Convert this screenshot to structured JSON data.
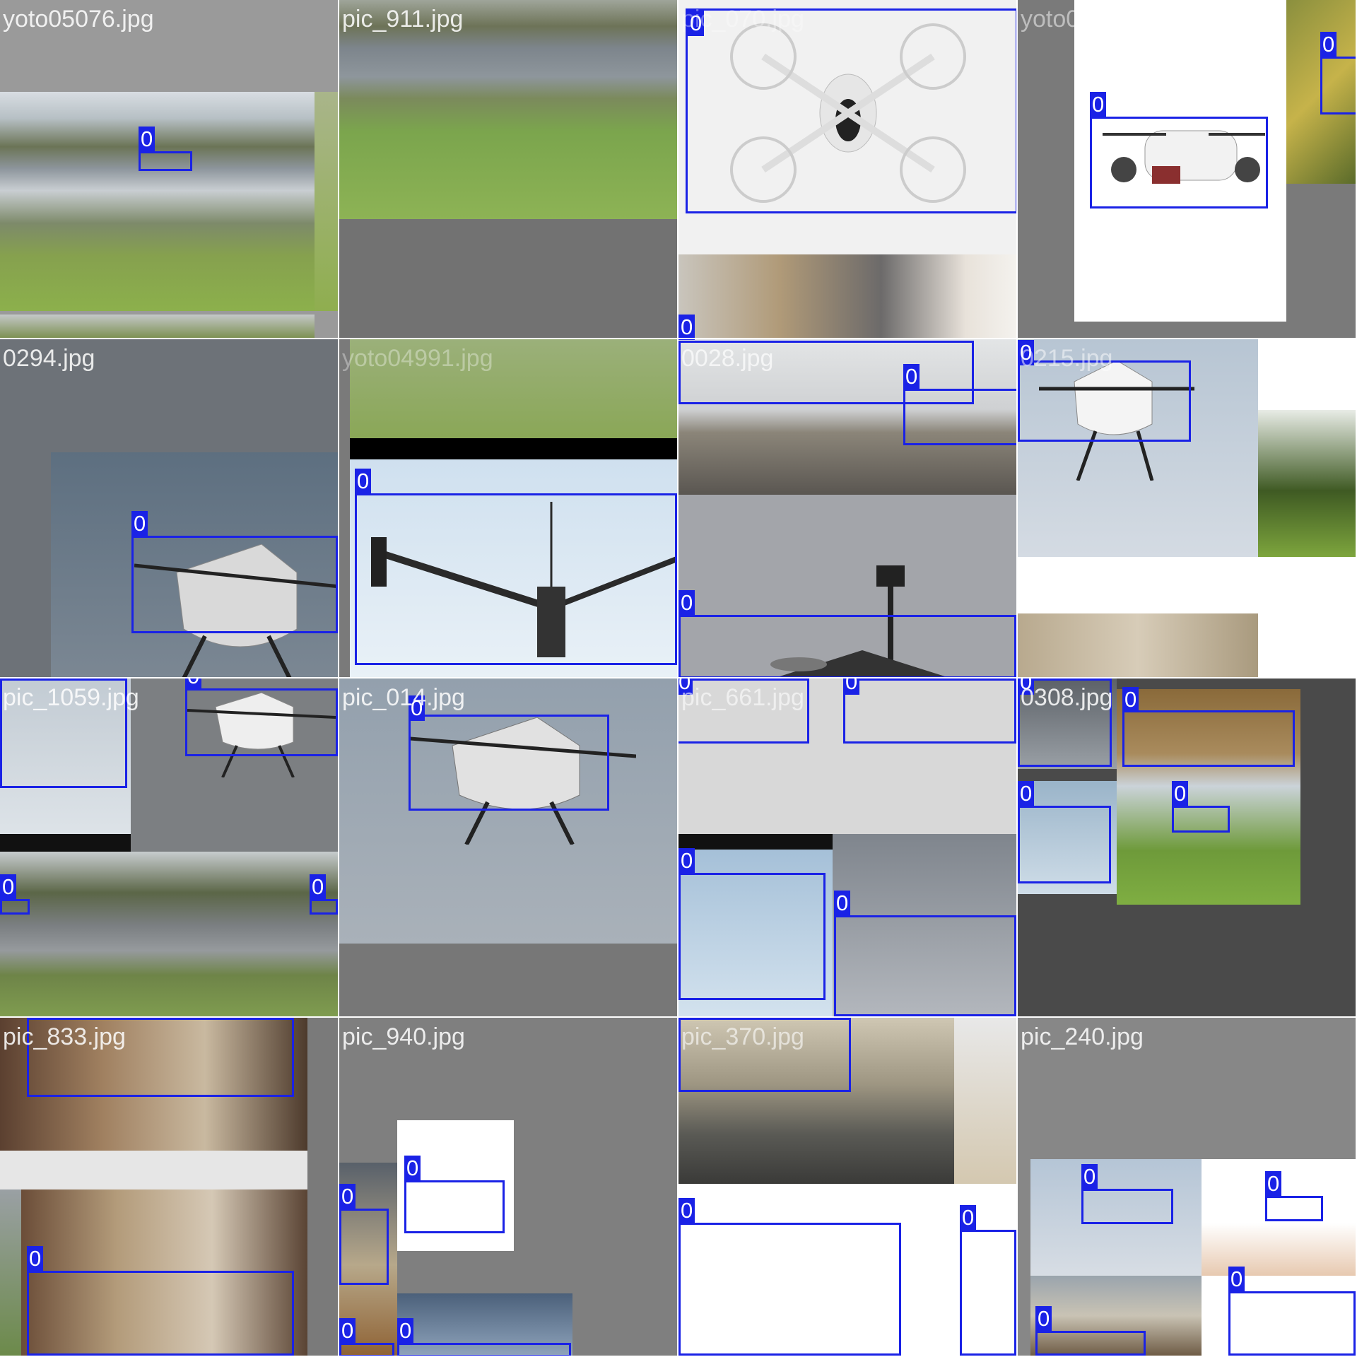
{
  "grid": {
    "rows": 4,
    "cols": 4
  },
  "box_color": "#1a22e6",
  "tiles": [
    {
      "filename": "yoto05076.jpg",
      "class_labels": [
        "0"
      ]
    },
    {
      "filename": "pic_911.jpg",
      "class_labels": []
    },
    {
      "filename": "pic_070.jpg",
      "class_labels": [
        "0",
        "0"
      ]
    },
    {
      "filename": "yoto05163.jpg",
      "class_labels": [
        "0",
        "0"
      ]
    },
    {
      "filename": "0294.jpg",
      "class_labels": [
        "0"
      ]
    },
    {
      "filename": "yoto04991.jpg",
      "class_labels": [
        "0"
      ]
    },
    {
      "filename": "0028.jpg",
      "class_labels": [
        "0",
        "0",
        "0"
      ]
    },
    {
      "filename": "0215.jpg",
      "class_labels": [
        "0"
      ]
    },
    {
      "filename": "pic_1059.jpg",
      "class_labels": [
        "0",
        "0",
        "0",
        "0"
      ]
    },
    {
      "filename": "pic_014.jpg",
      "class_labels": [
        "0"
      ]
    },
    {
      "filename": "pic_661.jpg",
      "class_labels": [
        "0",
        "0",
        "0",
        "0"
      ]
    },
    {
      "filename": "0308.jpg",
      "class_labels": [
        "0",
        "0",
        "0",
        "0"
      ]
    },
    {
      "filename": "pic_833.jpg",
      "class_labels": [
        "0",
        "0"
      ]
    },
    {
      "filename": "pic_940.jpg",
      "class_labels": [
        "0",
        "0",
        "0",
        "0"
      ]
    },
    {
      "filename": "pic_370.jpg",
      "class_labels": [
        "0",
        "0",
        "0"
      ]
    },
    {
      "filename": "pic_240.jpg",
      "class_labels": [
        "0",
        "0",
        "0",
        "0"
      ]
    }
  ]
}
